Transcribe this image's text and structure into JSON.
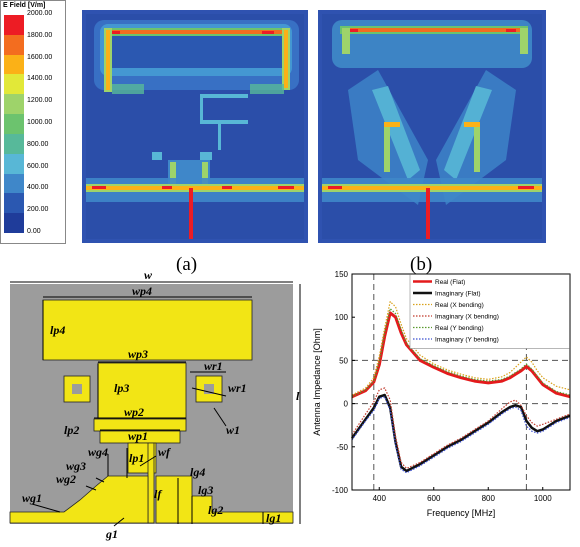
{
  "figure": {
    "legend": {
      "title": "E Field [V/m]",
      "ticks": [
        "2000.00",
        "1800.00",
        "1600.00",
        "1400.00",
        "1200.00",
        "1000.00",
        "800.00",
        "600.00",
        "400.00",
        "200.00",
        "0.00"
      ],
      "colors": [
        "#ed1c24",
        "#f36d1f",
        "#fbb117",
        "#e2e838",
        "#9ed36a",
        "#6cc36e",
        "#57b99a",
        "#58b7d6",
        "#3f87c9",
        "#2b58b1",
        "#1f3c9a"
      ]
    },
    "captions": {
      "a": "(a)",
      "b": "(b)"
    },
    "antenna": {
      "labels": {
        "w": "w",
        "wp4": "wp4",
        "lp4": "lp4",
        "wp3": "wp3",
        "lp3": "lp3",
        "wr1_a": "wr1",
        "wr1_b": "wr1",
        "w1": "w1",
        "l": "l",
        "wp2": "wp2",
        "lp2": "lp2",
        "wp1": "wp1",
        "wg4": "wg4",
        "wf": "wf",
        "lp1": "lp1",
        "wg3": "wg3",
        "lg4": "lg4",
        "wg2": "wg2",
        "lf": "lf",
        "lg3": "lg3",
        "wg1": "wg1",
        "lg2": "lg2",
        "lg1": "lg1",
        "g1": "g1"
      },
      "colors": {
        "substrate": "#9c9c9c",
        "metal": "#f2e515"
      }
    }
  },
  "chart_data": {
    "type": "line",
    "xlabel": "Frequency [MHz]",
    "ylabel": "Antenna Impedance [Ohm]",
    "xlim": [
      300,
      1100
    ],
    "ylim": [
      -100,
      150
    ],
    "xticks": [
      400,
      600,
      800,
      1000
    ],
    "yticks": [
      -100,
      -50,
      0,
      50,
      100,
      150
    ],
    "x": [
      300,
      350,
      380,
      400,
      420,
      440,
      460,
      480,
      500,
      550,
      600,
      650,
      700,
      750,
      800,
      850,
      880,
      900,
      920,
      940,
      960,
      980,
      1000,
      1050,
      1100
    ],
    "series": [
      {
        "name": "Real (Flat)",
        "color": "#e41a1c",
        "style": "solid",
        "width": 3,
        "values": [
          8,
          15,
          25,
          45,
          78,
          105,
          100,
          82,
          68,
          50,
          42,
          35,
          30,
          26,
          24,
          26,
          30,
          34,
          38,
          43,
          38,
          30,
          22,
          12,
          8
        ]
      },
      {
        "name": "Imaginary (Flat)",
        "color": "#111111",
        "style": "solid",
        "width": 2.5,
        "values": [
          -40,
          -18,
          -5,
          8,
          10,
          -5,
          -45,
          -73,
          -78,
          -70,
          -60,
          -50,
          -42,
          -32,
          -22,
          -10,
          -4,
          -2,
          -4,
          -20,
          -28,
          -32,
          -30,
          -20,
          -14
        ]
      },
      {
        "name": "Real (X bending)",
        "color": "#d9a21b",
        "style": "dotted",
        "width": 1.2,
        "values": [
          10,
          18,
          30,
          55,
          88,
          118,
          112,
          92,
          75,
          56,
          46,
          39,
          34,
          30,
          28,
          31,
          36,
          42,
          48,
          54,
          48,
          38,
          30,
          20,
          16
        ]
      },
      {
        "name": "Imaginary (X bending)",
        "color": "#c0392b",
        "style": "dotted",
        "width": 1.2,
        "values": [
          -36,
          -12,
          2,
          16,
          18,
          4,
          -38,
          -68,
          -75,
          -68,
          -58,
          -48,
          -40,
          -30,
          -20,
          -6,
          2,
          4,
          -2,
          -14,
          -22,
          -26,
          -24,
          -18,
          -12
        ]
      },
      {
        "name": "Real (Y bending)",
        "color": "#5a9a2e",
        "style": "dotted",
        "width": 1.2,
        "values": [
          8,
          16,
          26,
          48,
          82,
          110,
          104,
          86,
          70,
          52,
          44,
          37,
          32,
          28,
          26,
          28,
          32,
          36,
          40,
          46,
          40,
          32,
          24,
          14,
          10
        ]
      },
      {
        "name": "Imaginary (Y bending)",
        "color": "#3a4fd0",
        "style": "dotted",
        "width": 1.2,
        "values": [
          -42,
          -20,
          -8,
          6,
          8,
          -8,
          -48,
          -76,
          -80,
          -72,
          -62,
          -52,
          -44,
          -34,
          -24,
          -12,
          -6,
          -4,
          -8,
          -26,
          -32,
          -34,
          -32,
          -22,
          -16
        ]
      }
    ],
    "reference_lines": {
      "x": [
        380,
        940
      ],
      "y": [
        50,
        0
      ]
    }
  }
}
